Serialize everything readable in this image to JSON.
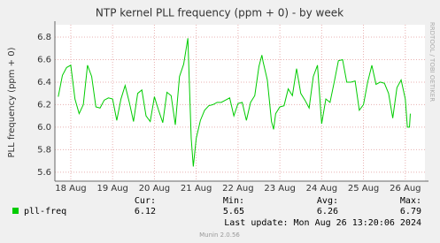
{
  "chart_data": {
    "type": "line",
    "title": "NTP kernel PLL frequency (ppm + 0) - by week",
    "y_label": "PLL frequency (ppm + 0)",
    "watermark": "RRDTOOL / TOBI OETIKER",
    "x": [
      17.7,
      17.8,
      17.9,
      18.0,
      18.1,
      18.2,
      18.3,
      18.4,
      18.5,
      18.6,
      18.7,
      18.8,
      18.9,
      19.0,
      19.1,
      19.2,
      19.3,
      19.4,
      19.5,
      19.6,
      19.7,
      19.8,
      19.9,
      20.0,
      20.1,
      20.2,
      20.3,
      20.4,
      20.5,
      20.6,
      20.7,
      20.8,
      20.88,
      20.93,
      21.0,
      21.1,
      21.2,
      21.3,
      21.4,
      21.5,
      21.6,
      21.7,
      21.8,
      21.9,
      22.0,
      22.1,
      22.2,
      22.3,
      22.4,
      22.5,
      22.57,
      22.6,
      22.7,
      22.8,
      22.85,
      22.9,
      23.0,
      23.1,
      23.2,
      23.3,
      23.4,
      23.5,
      23.6,
      23.7,
      23.8,
      23.9,
      24.0,
      24.1,
      24.2,
      24.3,
      24.4,
      24.5,
      24.6,
      24.7,
      24.8,
      24.9,
      25.0,
      25.1,
      25.2,
      25.3,
      25.4,
      25.5,
      25.6,
      25.7,
      25.8,
      25.9,
      26.0,
      26.05,
      26.1,
      26.12
    ],
    "series": [
      {
        "name": "pll-freq",
        "color": "#00cc00",
        "values": [
          6.27,
          6.46,
          6.53,
          6.55,
          6.25,
          6.12,
          6.2,
          6.55,
          6.45,
          6.18,
          6.17,
          6.24,
          6.26,
          6.25,
          6.06,
          6.25,
          6.37,
          6.22,
          6.05,
          6.3,
          6.33,
          6.1,
          6.05,
          6.27,
          6.15,
          6.04,
          6.31,
          6.28,
          6.02,
          6.45,
          6.56,
          6.79,
          5.9,
          5.65,
          5.9,
          6.06,
          6.15,
          6.19,
          6.2,
          6.22,
          6.22,
          6.24,
          6.26,
          6.1,
          6.21,
          6.22,
          6.06,
          6.22,
          6.28,
          6.54,
          6.64,
          6.58,
          6.42,
          6.05,
          5.98,
          6.12,
          6.18,
          6.19,
          6.34,
          6.28,
          6.52,
          6.3,
          6.24,
          6.17,
          6.45,
          6.55,
          6.03,
          6.25,
          6.22,
          6.4,
          6.59,
          6.6,
          6.4,
          6.4,
          6.41,
          6.15,
          6.2,
          6.4,
          6.55,
          6.38,
          6.4,
          6.39,
          6.3,
          6.08,
          6.35,
          6.42,
          6.25,
          6.0,
          6.0,
          6.12
        ]
      }
    ],
    "xlim": [
      17.62,
      26.47
    ],
    "xticks": [
      {
        "value": 18,
        "label": "18 Aug"
      },
      {
        "value": 19,
        "label": "19 Aug"
      },
      {
        "value": 20,
        "label": "20 Aug"
      },
      {
        "value": 21,
        "label": "21 Aug"
      },
      {
        "value": 22,
        "label": "22 Aug"
      },
      {
        "value": 23,
        "label": "23 Aug"
      },
      {
        "value": 24,
        "label": "24 Aug"
      },
      {
        "value": 25,
        "label": "25 Aug"
      },
      {
        "value": 26,
        "label": "26 Aug"
      }
    ],
    "ylim": [
      5.52,
      6.91
    ],
    "yticks": [
      5.6,
      5.8,
      {
        "value": 6,
        "label": "6.0"
      },
      6.2,
      6.4,
      6.6,
      6.8
    ],
    "grid": true,
    "stats": {
      "labels": [
        "Cur:",
        "Min:",
        "Avg:",
        "Max:"
      ],
      "values": [
        6.12,
        5.65,
        6.26,
        6.79
      ]
    },
    "last_update": "Last update: Mon Aug 26 13:20:06 2024",
    "footer": "Munin 2.0.56"
  }
}
